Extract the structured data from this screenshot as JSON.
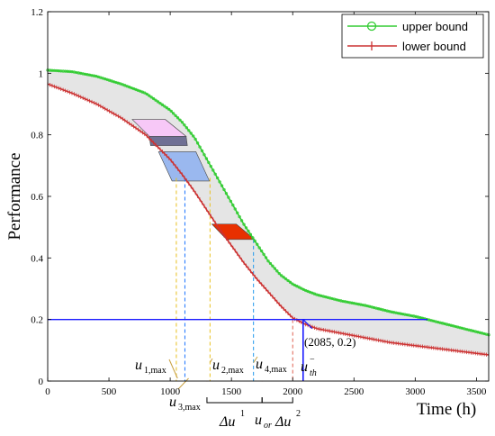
{
  "chart_data": {
    "type": "line",
    "title": "",
    "xlabel": "Time (h)",
    "ylabel": "Performance",
    "xlim": [
      0,
      3600
    ],
    "ylim": [
      0,
      1.2
    ],
    "xticks": [
      0,
      500,
      1000,
      1500,
      2000,
      2500,
      3000,
      3500
    ],
    "yticks": [
      0,
      0.2,
      0.4,
      0.6,
      0.8,
      1.0,
      1.2
    ],
    "xtick_labels": [
      "0",
      "500",
      "1000",
      "1500",
      "2000",
      "2500",
      "3000",
      "3500"
    ],
    "ytick_labels": [
      "0",
      "0.2",
      "0.4",
      "0.6",
      "0.8",
      "1",
      "1.2"
    ],
    "legend_position": "top-right",
    "grid": false,
    "series": [
      {
        "name": "upper bound",
        "color": "#33cc33",
        "marker": "circle",
        "x": [
          0,
          200,
          400,
          600,
          800,
          1000,
          1100,
          1200,
          1300,
          1400,
          1500,
          1600,
          1700,
          1800,
          1900,
          2000,
          2100,
          2200,
          2400,
          2600,
          2800,
          3000,
          3200,
          3400,
          3600
        ],
        "y": [
          1.01,
          1.005,
          0.99,
          0.965,
          0.935,
          0.88,
          0.84,
          0.79,
          0.72,
          0.65,
          0.58,
          0.51,
          0.45,
          0.39,
          0.345,
          0.315,
          0.295,
          0.28,
          0.26,
          0.245,
          0.225,
          0.21,
          0.19,
          0.17,
          0.15
        ]
      },
      {
        "name": "lower bound",
        "color": "#cc3333",
        "marker": "plus",
        "x": [
          0,
          200,
          400,
          600,
          800,
          1000,
          1100,
          1200,
          1300,
          1400,
          1500,
          1600,
          1700,
          1800,
          1900,
          2000,
          2100,
          2200,
          2400,
          2600,
          2800,
          3000,
          3200,
          3400,
          3600
        ],
        "y": [
          0.965,
          0.935,
          0.9,
          0.855,
          0.8,
          0.72,
          0.67,
          0.615,
          0.555,
          0.495,
          0.44,
          0.385,
          0.335,
          0.29,
          0.245,
          0.205,
          0.185,
          0.17,
          0.155,
          0.14,
          0.125,
          0.115,
          0.105,
          0.095,
          0.085
        ]
      }
    ],
    "threshold": {
      "y": 0.2,
      "x_end": 3100,
      "color": "#1a1aff",
      "marker_point": [
        2085,
        0.2
      ],
      "marker_label": "(2085, 0.2)"
    },
    "shaded_regions": [
      {
        "color": "#f7c8f7",
        "y_top": 0.85,
        "y_bottom": 0.795,
        "x_top": [
          690,
          960
        ],
        "x_bottom": [
          830,
          1130
        ]
      },
      {
        "color": "#707094",
        "y_top": 0.795,
        "y_bottom": 0.765,
        "x_top": [
          830,
          1130
        ],
        "x_bottom": [
          840,
          1140
        ]
      },
      {
        "color": "#9ab8ef",
        "y_top": 0.745,
        "y_bottom": 0.65,
        "x_top": [
          905,
          1210
        ],
        "x_bottom": [
          1015,
          1320
        ]
      },
      {
        "color": "#e83000",
        "y_top": 0.51,
        "y_bottom": 0.46,
        "x_top": [
          1340,
          1540
        ],
        "x_bottom": [
          1460,
          1690
        ]
      }
    ],
    "dashed_lines": [
      {
        "x": 1120,
        "y_top": 0.66,
        "color": "#1a73ff"
      },
      {
        "x": 1050,
        "y_top": 0.66,
        "color": "#e8c020"
      },
      {
        "x": 1325,
        "y_top": 0.66,
        "color": "#e8c020"
      },
      {
        "x": 1680,
        "y_top": 0.46,
        "color": "#2299ee"
      },
      {
        "x": 1300,
        "y_top": 0.0,
        "color": "#e06050"
      },
      {
        "x": 1750,
        "y_top": 0.0,
        "color": "#e06050"
      },
      {
        "x": 2000,
        "y_top": 0.2,
        "color": "#e06050"
      }
    ],
    "annotations": {
      "u1max": {
        "main": "u",
        "sub": "1,max"
      },
      "u2max": {
        "main": "u",
        "sub": "2,max"
      },
      "u3max": {
        "main": "u",
        "sub": "3,max"
      },
      "u4max": {
        "main": "u",
        "sub": "4,max"
      },
      "uth": {
        "main": "u",
        "sub": "th",
        "sup": "−"
      },
      "delta_u1": {
        "main": "Δu",
        "sup": "1"
      },
      "u_or": {
        "main": "u",
        "sub": "or"
      },
      "delta_u2": {
        "main": "Δu",
        "sup": "2"
      }
    }
  }
}
